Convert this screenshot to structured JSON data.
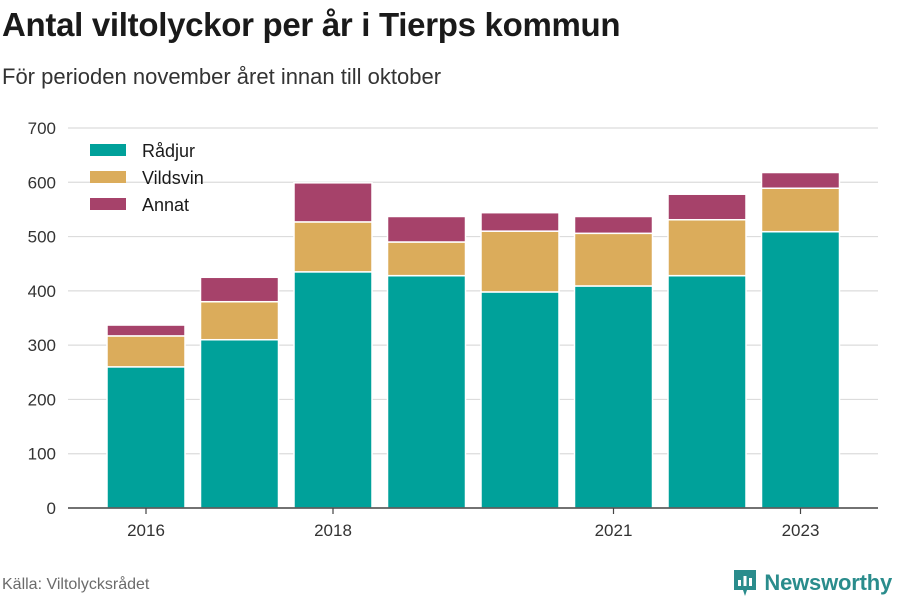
{
  "header": {
    "title": "Antal viltolyckor per år i Tierps kommun",
    "subtitle": "För perioden november året innan till oktober"
  },
  "footer": {
    "source": "Källa: Viltolycksrådet",
    "brand": "Newsworthy",
    "brand_icon": "newsworthy-logo-icon",
    "brand_color": "#2a8c8c"
  },
  "chart_data": {
    "type": "bar",
    "stacked": true,
    "title": "Antal viltolyckor per år i Tierps kommun",
    "subtitle": "För perioden november året innan till oktober",
    "xlabel": "",
    "ylabel": "",
    "categories": [
      "2016",
      "2017",
      "2018",
      "2019",
      "2020",
      "2021",
      "2022",
      "2023"
    ],
    "x_tick_labels": [
      "2016",
      "",
      "2018",
      "",
      "",
      "2021",
      "",
      "2023"
    ],
    "ylim": [
      0,
      700
    ],
    "yticks": [
      0,
      100,
      200,
      300,
      400,
      500,
      600,
      700
    ],
    "grid": true,
    "legend_position": "top-left",
    "series": [
      {
        "name": "Rådjur",
        "color": "#00a19a",
        "values": [
          260,
          310,
          435,
          428,
          398,
          409,
          428,
          509
        ]
      },
      {
        "name": "Vildsvin",
        "color": "#dbac5b",
        "values": [
          57,
          70,
          92,
          62,
          112,
          97,
          103,
          80
        ]
      },
      {
        "name": "Annat",
        "color": "#a6426a",
        "values": [
          20,
          45,
          72,
          47,
          34,
          31,
          47,
          29
        ]
      }
    ]
  }
}
